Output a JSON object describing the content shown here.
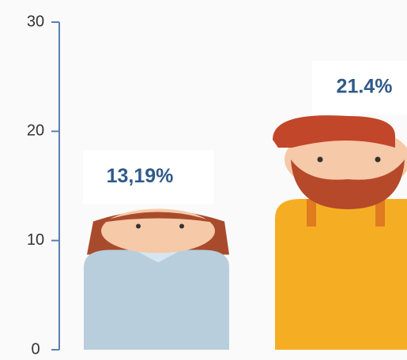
{
  "chart_data": {
    "type": "bar",
    "values": [
      13.19,
      21.4
    ],
    "value_labels": [
      "13,19%",
      "21.4%"
    ],
    "colors": [
      "#b8cedd",
      "#f5ae24"
    ],
    "ylim": [
      0,
      30
    ],
    "yticks": [
      0,
      10,
      20,
      30
    ]
  }
}
